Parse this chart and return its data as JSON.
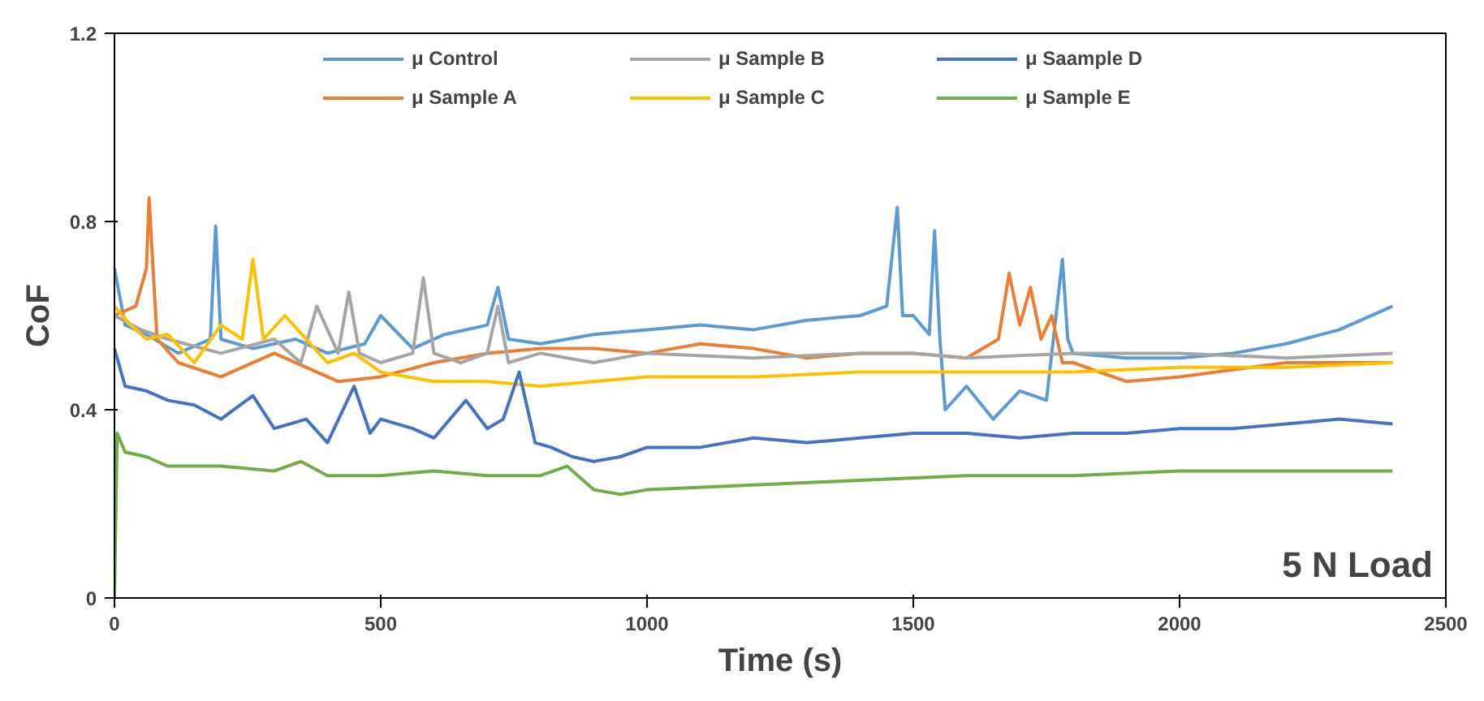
{
  "chart_data": {
    "type": "line",
    "xlabel": "Time (s)",
    "ylabel": "CoF",
    "annotations": [
      "5 N Load"
    ],
    "xlim": [
      0,
      2500
    ],
    "ylim": [
      0,
      1.2
    ],
    "xticks": [
      0,
      500,
      1000,
      1500,
      2000,
      2500
    ],
    "yticks": [
      0,
      0.4,
      0.8,
      1.2
    ],
    "grid": false,
    "legend": "top",
    "marker": "none",
    "line_style": "solid",
    "series": [
      {
        "name": "μ Control",
        "color": "#5b9bd5",
        "x": [
          0,
          20,
          60,
          120,
          180,
          190,
          200,
          260,
          340,
          400,
          470,
          500,
          560,
          620,
          700,
          720,
          740,
          800,
          900,
          1000,
          1100,
          1200,
          1300,
          1400,
          1450,
          1470,
          1480,
          1500,
          1530,
          1540,
          1550,
          1560,
          1600,
          1650,
          1700,
          1750,
          1780,
          1790,
          1800,
          1900,
          2000,
          2100,
          2200,
          2300,
          2400
        ],
        "values": [
          0.7,
          0.58,
          0.56,
          0.52,
          0.55,
          0.79,
          0.55,
          0.53,
          0.55,
          0.52,
          0.54,
          0.6,
          0.53,
          0.56,
          0.58,
          0.66,
          0.55,
          0.54,
          0.56,
          0.57,
          0.58,
          0.57,
          0.59,
          0.6,
          0.62,
          0.83,
          0.6,
          0.6,
          0.56,
          0.78,
          0.55,
          0.4,
          0.45,
          0.38,
          0.44,
          0.42,
          0.72,
          0.55,
          0.52,
          0.51,
          0.51,
          0.52,
          0.54,
          0.57,
          0.62
        ]
      },
      {
        "name": "μ Sample A",
        "color": "#ed7d31",
        "x": [
          0,
          40,
          60,
          65,
          80,
          120,
          200,
          300,
          420,
          500,
          600,
          700,
          800,
          900,
          1000,
          1100,
          1200,
          1300,
          1400,
          1500,
          1600,
          1660,
          1680,
          1700,
          1720,
          1740,
          1760,
          1780,
          1800,
          1900,
          2000,
          2200,
          2400
        ],
        "values": [
          0.6,
          0.62,
          0.7,
          0.85,
          0.55,
          0.5,
          0.47,
          0.52,
          0.46,
          0.47,
          0.5,
          0.52,
          0.53,
          0.53,
          0.52,
          0.54,
          0.53,
          0.51,
          0.52,
          0.52,
          0.51,
          0.55,
          0.69,
          0.58,
          0.66,
          0.55,
          0.6,
          0.5,
          0.5,
          0.46,
          0.47,
          0.5,
          0.5
        ]
      },
      {
        "name": "μ Sample B",
        "color": "#a5a5a5",
        "x": [
          0,
          50,
          100,
          200,
          300,
          350,
          380,
          420,
          440,
          460,
          500,
          560,
          580,
          600,
          650,
          700,
          720,
          740,
          800,
          900,
          1000,
          1200,
          1400,
          1500,
          1600,
          1800,
          2000,
          2200,
          2400
        ],
        "values": [
          0.6,
          0.57,
          0.55,
          0.52,
          0.55,
          0.5,
          0.62,
          0.52,
          0.65,
          0.52,
          0.5,
          0.52,
          0.68,
          0.52,
          0.5,
          0.52,
          0.62,
          0.5,
          0.52,
          0.5,
          0.52,
          0.51,
          0.52,
          0.52,
          0.51,
          0.52,
          0.52,
          0.51,
          0.52
        ]
      },
      {
        "name": "μ Sample C",
        "color": "#ffc000",
        "x": [
          0,
          30,
          60,
          100,
          150,
          200,
          240,
          260,
          280,
          320,
          400,
          450,
          500,
          600,
          700,
          800,
          900,
          1000,
          1200,
          1400,
          1600,
          1800,
          2000,
          2200,
          2400
        ],
        "values": [
          0.62,
          0.58,
          0.55,
          0.56,
          0.5,
          0.58,
          0.55,
          0.72,
          0.55,
          0.6,
          0.5,
          0.52,
          0.48,
          0.46,
          0.46,
          0.45,
          0.46,
          0.47,
          0.47,
          0.48,
          0.48,
          0.48,
          0.49,
          0.49,
          0.5
        ]
      },
      {
        "name": "μ Saample D",
        "color": "#4472c4",
        "x": [
          0,
          20,
          60,
          100,
          150,
          200,
          260,
          300,
          360,
          400,
          450,
          480,
          500,
          560,
          600,
          660,
          700,
          730,
          760,
          790,
          820,
          860,
          900,
          950,
          1000,
          1100,
          1200,
          1300,
          1400,
          1500,
          1600,
          1700,
          1800,
          1900,
          2000,
          2100,
          2200,
          2300,
          2400
        ],
        "values": [
          0.53,
          0.45,
          0.44,
          0.42,
          0.41,
          0.38,
          0.43,
          0.36,
          0.38,
          0.33,
          0.45,
          0.35,
          0.38,
          0.36,
          0.34,
          0.42,
          0.36,
          0.38,
          0.48,
          0.33,
          0.32,
          0.3,
          0.29,
          0.3,
          0.32,
          0.32,
          0.34,
          0.33,
          0.34,
          0.35,
          0.35,
          0.34,
          0.35,
          0.35,
          0.36,
          0.36,
          0.37,
          0.38,
          0.37
        ]
      },
      {
        "name": "μ Sample E",
        "color": "#70ad47",
        "x": [
          0,
          5,
          20,
          60,
          100,
          200,
          300,
          350,
          400,
          500,
          600,
          700,
          800,
          850,
          880,
          900,
          950,
          1000,
          1200,
          1400,
          1600,
          1800,
          2000,
          2200,
          2400
        ],
        "values": [
          0.0,
          0.35,
          0.31,
          0.3,
          0.28,
          0.28,
          0.27,
          0.29,
          0.26,
          0.26,
          0.27,
          0.26,
          0.26,
          0.28,
          0.25,
          0.23,
          0.22,
          0.23,
          0.24,
          0.25,
          0.26,
          0.26,
          0.27,
          0.27,
          0.27
        ]
      }
    ]
  }
}
